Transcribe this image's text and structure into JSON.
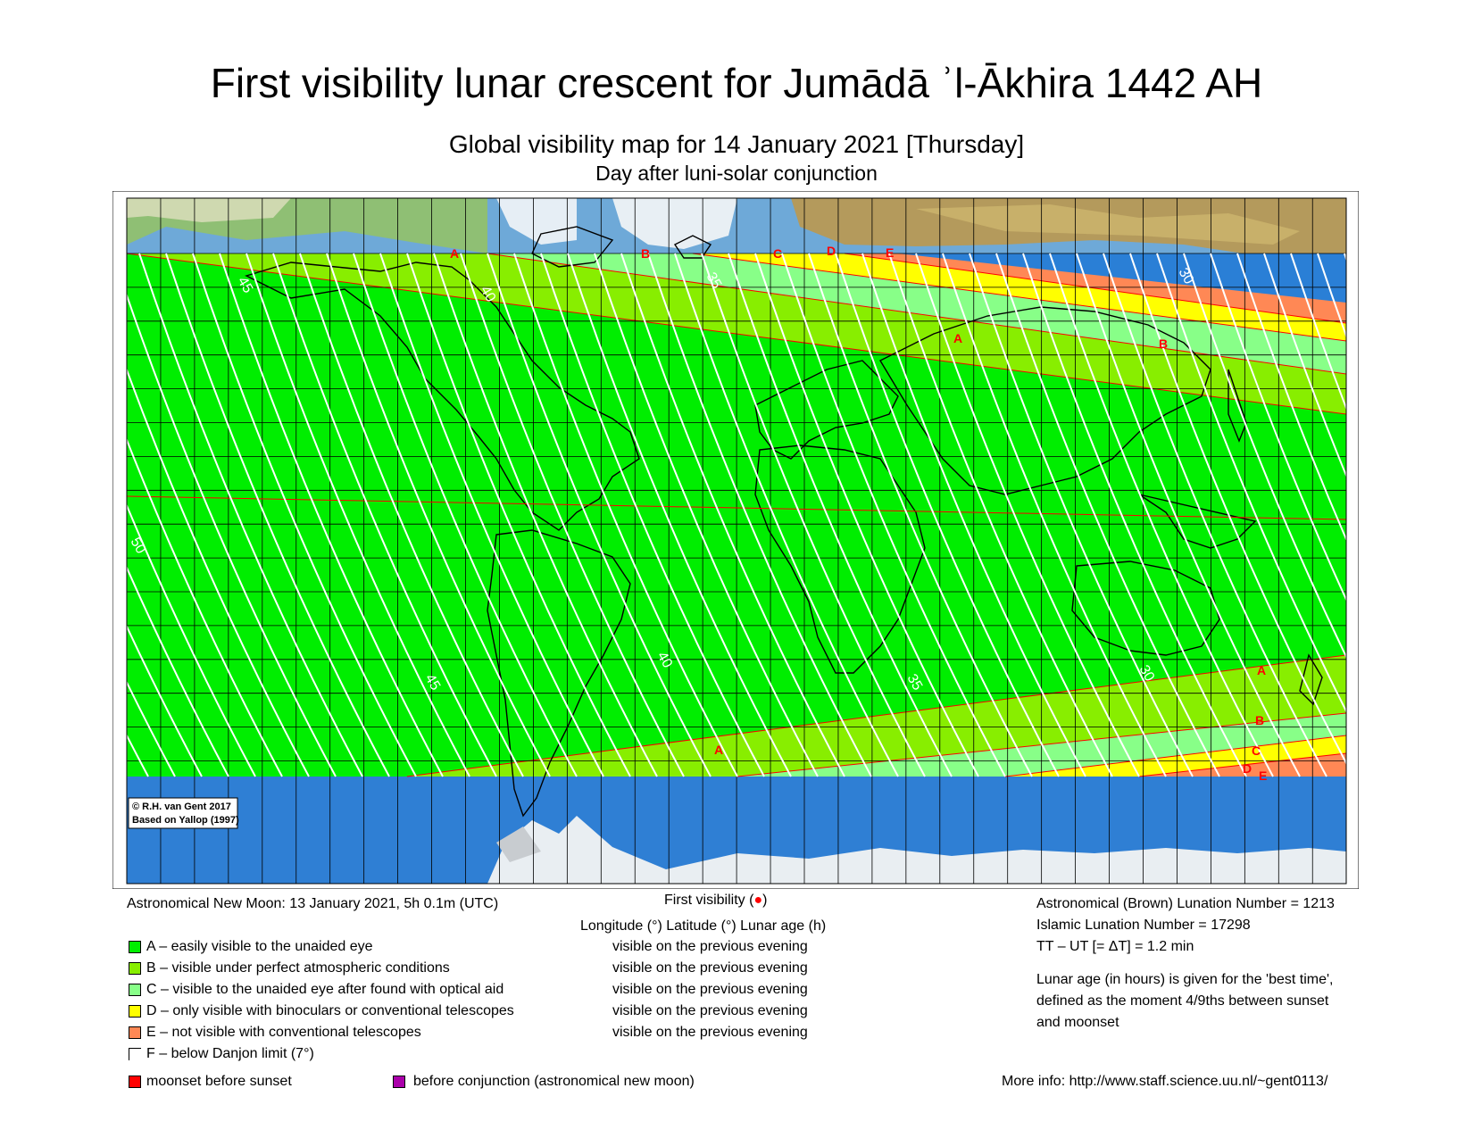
{
  "header": {
    "title": "First visibility lunar crescent for Jumādā ʾl-Ākhira 1442 AH",
    "subtitle": "Global visibility map for 14 January 2021 [Thursday]",
    "subtitle2": "Day after luni-solar conjunction"
  },
  "map": {
    "credit_line1": "© R.H. van Gent 2017",
    "credit_line2": "Based on Yallop (1997)",
    "zone_colors": {
      "A": "#00ee00",
      "B": "#88ee00",
      "C": "#88ff88",
      "D": "#ffff00",
      "E": "#ff8855",
      "ocean": "#2a7fd6",
      "land": "#8fbf74",
      "curve": "#ffffff",
      "boundary": "#ff0000"
    },
    "zone_letters_top": [
      "A",
      "B",
      "C",
      "D",
      "E",
      "A",
      "B"
    ],
    "zone_letters_bottom": [
      "A",
      "B",
      "C",
      "D",
      "E",
      "A"
    ],
    "age_labels": [
      "45",
      "40",
      "35",
      "30",
      "50",
      "45",
      "40",
      "35",
      "30"
    ]
  },
  "info": {
    "new_moon": "Astronomical New Moon: 13 January 2021, 5h 0.1m (UTC)",
    "first_visibility_prefix": "First visibility (",
    "first_visibility_suffix": ")",
    "col_headers": "Longitude (°)   Latitude (°)   Lunar age (h)",
    "brown_lunation": "Astronomical (Brown) Lunation Number = 1213",
    "islamic_lunation": "Islamic Lunation Number = 17298",
    "delta_t": "TT – UT [= ΔT] = 1.2 min",
    "lunar_age_note_1": "Lunar age (in hours) is given for the 'best time',",
    "lunar_age_note_2": "defined as the moment 4/9ths between sunset",
    "lunar_age_note_3": "and moonset",
    "more_info": "More info: http://www.staff.science.uu.nl/~gent0113/"
  },
  "legend": [
    {
      "label": "A – easily visible to the unaided eye",
      "status": "visible on the previous evening",
      "color": "#00ee00"
    },
    {
      "label": "B – visible under perfect atmospheric conditions",
      "status": "visible on the previous evening",
      "color": "#88ee00"
    },
    {
      "label": "C – visible to the unaided eye after found with optical aid",
      "status": "visible on the previous evening",
      "color": "#88ff88"
    },
    {
      "label": "D – only visible with binoculars or conventional telescopes",
      "status": "visible on the previous evening",
      "color": "#ffff00"
    },
    {
      "label": "E – not visible with conventional telescopes",
      "status": "visible on the previous evening",
      "color": "#ff8855"
    },
    {
      "label": "F – below Danjon limit (7°)",
      "status": "",
      "color": "#ffffff"
    }
  ],
  "legend_extra": [
    {
      "label": "moonset before sunset",
      "color": "#ff0000"
    },
    {
      "label": "before conjunction (astronomical new moon)",
      "color": "#aa00aa"
    }
  ]
}
